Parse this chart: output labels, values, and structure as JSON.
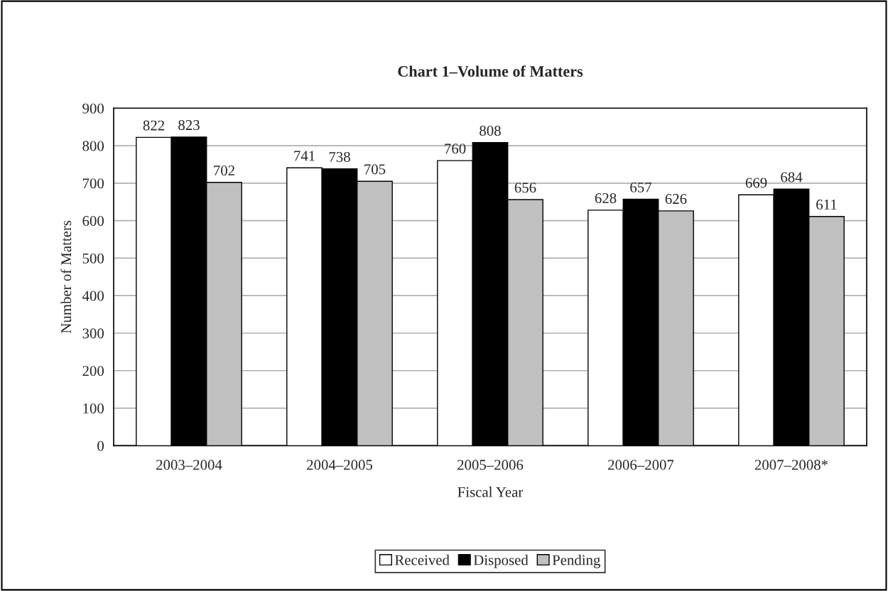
{
  "chart_data": {
    "type": "bar",
    "title": "Chart 1–Volume of Matters",
    "xlabel": "Fiscal Year",
    "ylabel": "Number of Matters",
    "categories": [
      "2003–2004",
      "2004–2005",
      "2005–2006",
      "2006–2007",
      "2007–2008*"
    ],
    "series": [
      {
        "name": "Received",
        "color": "#ffffff",
        "values": [
          822,
          741,
          760,
          628,
          669
        ]
      },
      {
        "name": "Disposed",
        "color": "#000000",
        "values": [
          823,
          738,
          808,
          657,
          684
        ]
      },
      {
        "name": "Pending",
        "color": "#c0c0c0",
        "values": [
          702,
          705,
          656,
          626,
          611
        ]
      }
    ],
    "ylim": [
      0,
      900
    ],
    "yticks": [
      0,
      100,
      200,
      300,
      400,
      500,
      600,
      700,
      800,
      900
    ],
    "grid": "y",
    "legend": "bottom",
    "data_labels": true
  }
}
